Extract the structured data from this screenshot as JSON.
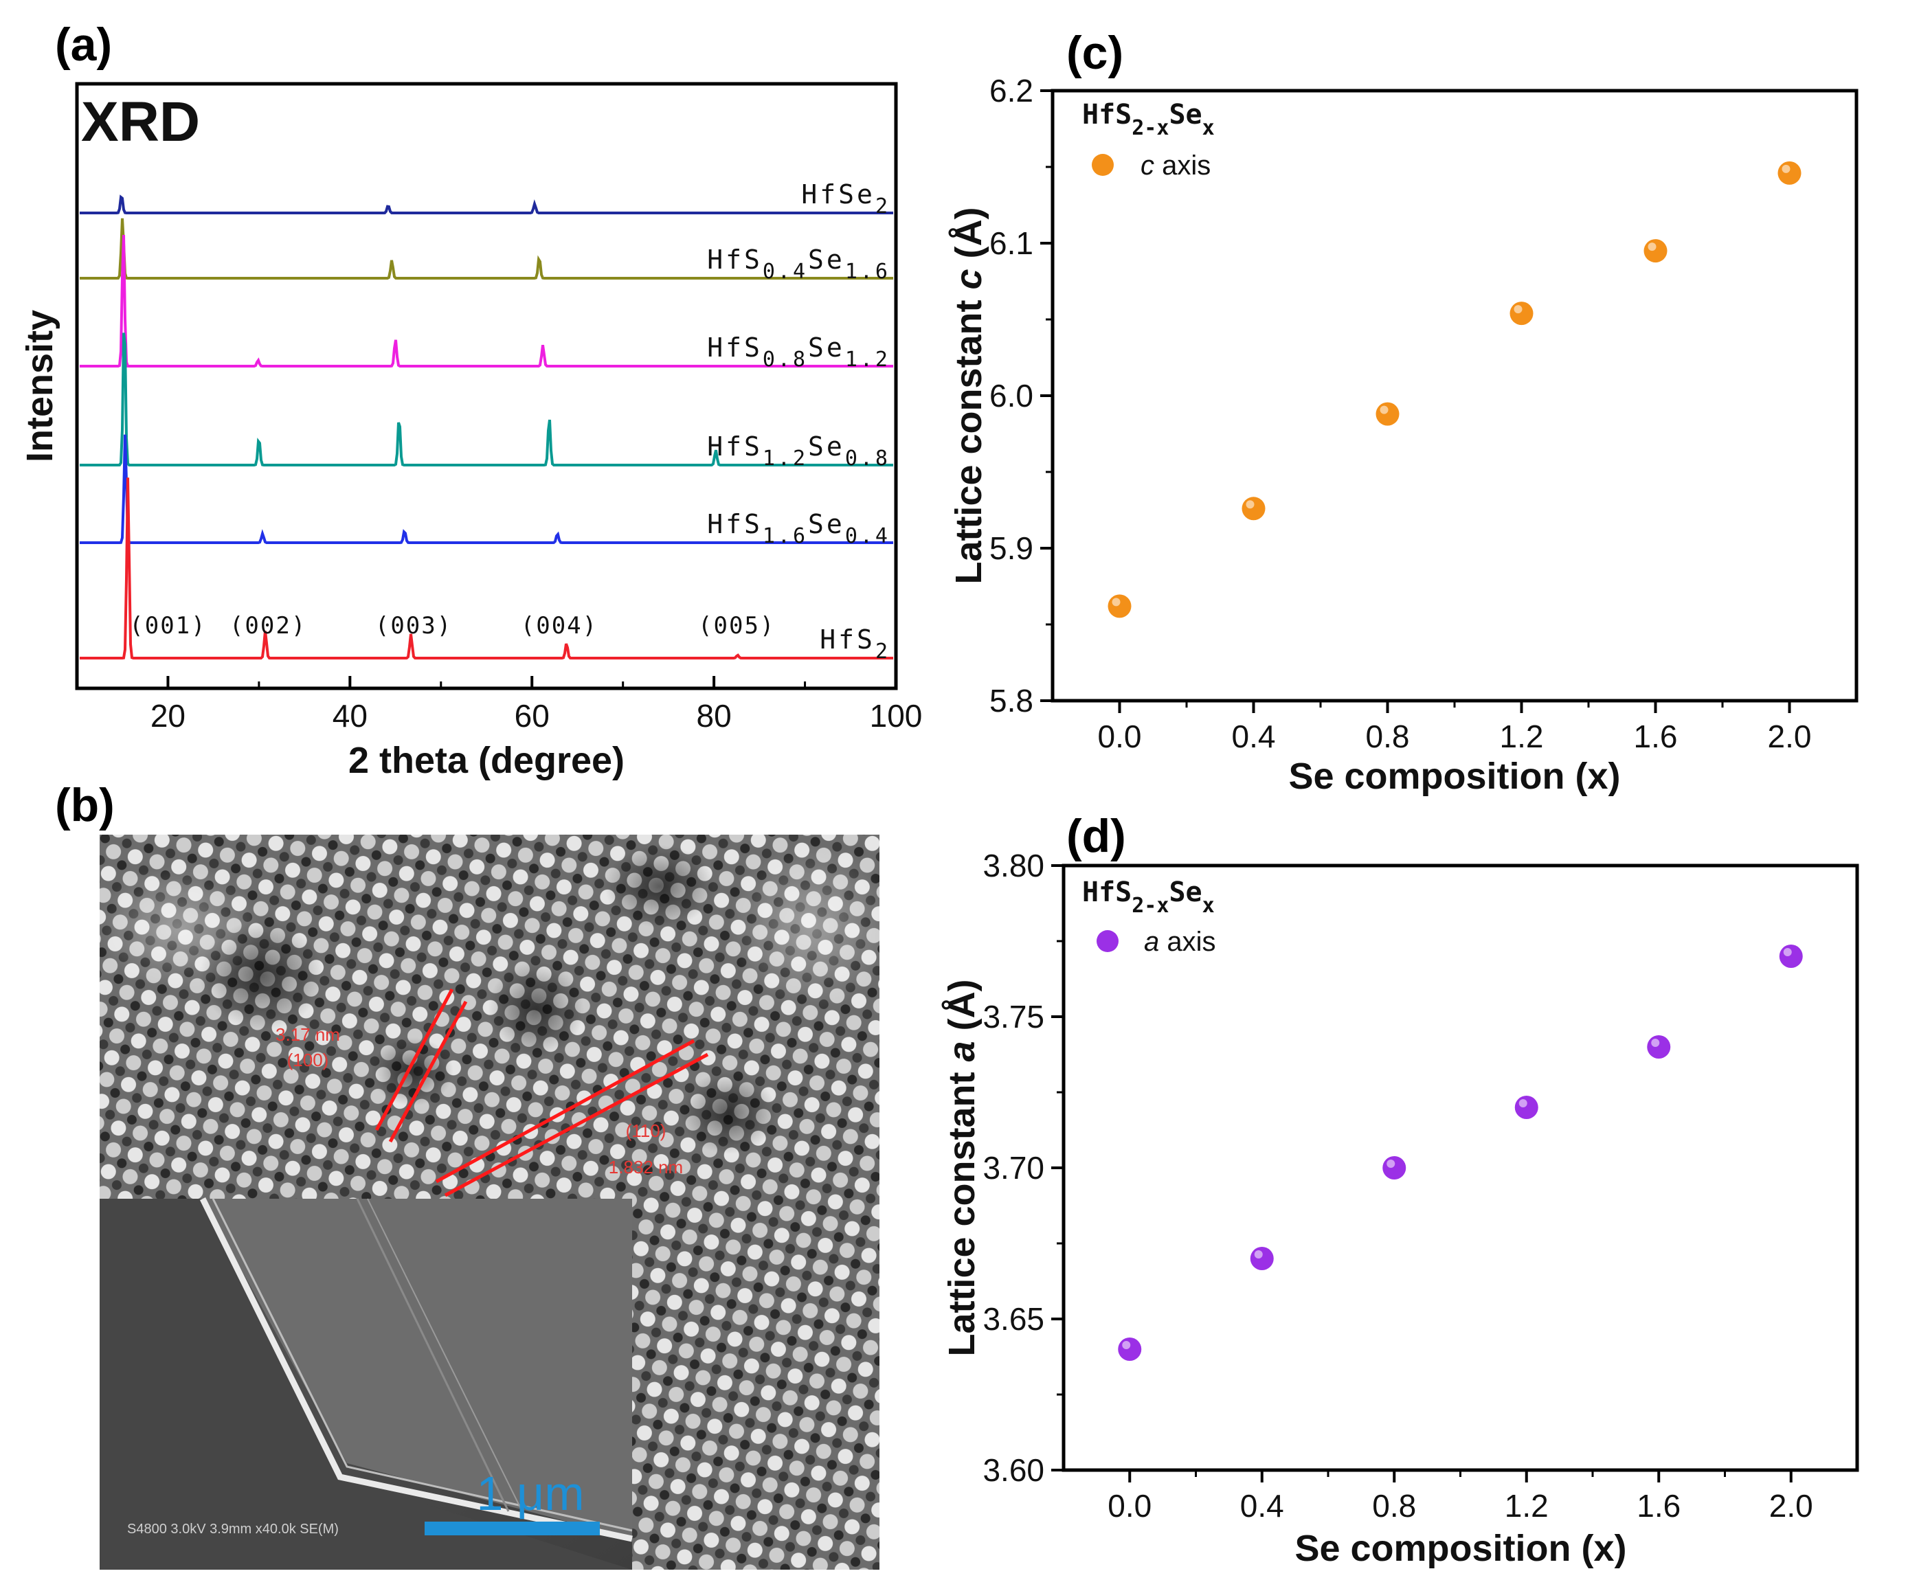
{
  "panels": {
    "a": "(a)",
    "b": "(b)",
    "c": "(c)",
    "d": "(d)"
  },
  "chart_data": [
    {
      "id": "a",
      "type": "line",
      "title": "XRD",
      "xlabel": "2 theta (degree)",
      "ylabel": "Intensity",
      "xlim": [
        10,
        100
      ],
      "xticks": [
        20,
        40,
        60,
        80,
        100
      ],
      "series": [
        {
          "base": "HfSe",
          "sub": "2",
          "color": "#1f2a9c",
          "peaks": [
            {
              "x": 14.9,
              "h": 0.12
            },
            {
              "x": 44.2,
              "h": 0.05
            },
            {
              "x": 60.3,
              "h": 0.06
            }
          ]
        },
        {
          "base": "HfS",
          "sub": "0.4",
          "base2": "Se",
          "sub2": "1.6",
          "color": "#8a8a1e",
          "peaks": [
            {
              "x": 15.0,
              "h": 0.4
            },
            {
              "x": 44.6,
              "h": 0.12
            },
            {
              "x": 60.8,
              "h": 0.14
            }
          ]
        },
        {
          "base": "HfS",
          "sub": "0.8",
          "base2": "Se",
          "sub2": "1.2",
          "color": "#ee1fe0",
          "peaks": [
            {
              "x": 15.1,
              "h": 0.9
            },
            {
              "x": 29.9,
              "h": 0.04
            },
            {
              "x": 45.0,
              "h": 0.18
            },
            {
              "x": 61.2,
              "h": 0.14
            }
          ]
        },
        {
          "base": "HfS",
          "sub": "1.2",
          "base2": "Se",
          "sub2": "0.8",
          "color": "#0a9a92",
          "peaks": [
            {
              "x": 15.2,
              "h": 1.0
            },
            {
              "x": 30.0,
              "h": 0.18
            },
            {
              "x": 45.4,
              "h": 0.32
            },
            {
              "x": 61.9,
              "h": 0.32
            },
            {
              "x": 80.2,
              "h": 0.1
            }
          ]
        },
        {
          "base": "HfS",
          "sub": "1.6",
          "base2": "Se",
          "sub2": "0.4",
          "color": "#2130e8",
          "peaks": [
            {
              "x": 15.3,
              "h": 0.72
            },
            {
              "x": 30.4,
              "h": 0.06
            },
            {
              "x": 46.0,
              "h": 0.08
            },
            {
              "x": 62.8,
              "h": 0.06
            }
          ]
        },
        {
          "base": "HfS",
          "sub": "2",
          "color": "#f0212b",
          "peaks": [
            {
              "x": 15.6,
              "h": 1.2
            },
            {
              "x": 30.7,
              "h": 0.18
            },
            {
              "x": 46.7,
              "h": 0.16
            },
            {
              "x": 63.8,
              "h": 0.1
            },
            {
              "x": 82.6,
              "h": 0.02
            }
          ]
        }
      ],
      "peak_labels": [
        {
          "text": "(001)",
          "x": 20
        },
        {
          "text": "(002)",
          "x": 31
        },
        {
          "text": "(003)",
          "x": 47
        },
        {
          "text": "(004)",
          "x": 63
        },
        {
          "text": "(005)",
          "x": 82.5
        }
      ]
    },
    {
      "id": "c",
      "type": "scatter",
      "xlabel": "Se composition (x)",
      "ylabel_prefix": "Lattice constant ",
      "ylabel_var": "c",
      "ylabel_unit": " (Å)",
      "xlim": [
        -0.2,
        2.2
      ],
      "ylim": [
        5.8,
        6.2
      ],
      "xticks": [
        "0.0",
        "0.4",
        "0.8",
        "1.2",
        "1.6",
        "2.0"
      ],
      "yticks": [
        "5.8",
        "5.9",
        "6.0",
        "6.1",
        "6.2"
      ],
      "x": [
        0.0,
        0.4,
        0.8,
        1.2,
        1.6,
        2.0
      ],
      "y": [
        5.862,
        5.926,
        5.988,
        6.054,
        6.095,
        6.146
      ],
      "color": "#f39019",
      "legend_title_base": "HfS",
      "legend_title_sub": "2-x",
      "legend_title_base2": "Se",
      "legend_title_sub2": "x",
      "legend_var": "c",
      "legend_text": " axis"
    },
    {
      "id": "d",
      "type": "scatter",
      "xlabel": "Se composition (x)",
      "ylabel_prefix": "Lattice constant ",
      "ylabel_var": "a",
      "ylabel_unit": " (Å)",
      "xlim": [
        -0.2,
        2.2
      ],
      "ylim": [
        3.6,
        3.8
      ],
      "xticks": [
        "0.0",
        "0.4",
        "0.8",
        "1.2",
        "1.6",
        "2.0"
      ],
      "yticks": [
        "3.60",
        "3.65",
        "3.70",
        "3.75",
        "3.80"
      ],
      "x": [
        0.0,
        0.4,
        0.8,
        1.2,
        1.6,
        2.0
      ],
      "y": [
        3.64,
        3.67,
        3.7,
        3.72,
        3.74,
        3.77
      ],
      "color": "#9b30e6",
      "legend_title_base": "HfS",
      "legend_title_sub": "2-x",
      "legend_title_base2": "Se",
      "legend_title_sub2": "x",
      "legend_var": "a",
      "legend_text": " axis"
    }
  ],
  "panel_b": {
    "annotation1_line1": "3.17 nm",
    "annotation1_line2": "(100)",
    "annotation2_line1": "(110)",
    "annotation2_line2": "1.832 nm",
    "inset_scale_label": "1 μm",
    "inset_info": "S4800 3.0kV 3.9mm x40.0k SE(M)"
  }
}
